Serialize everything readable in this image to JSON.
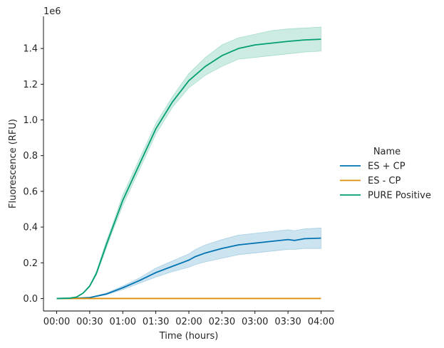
{
  "chart_data": {
    "type": "line",
    "title": "",
    "xlabel": "Time (hours)",
    "ylabel": "Fluorescence (RFU)",
    "y_scale_label": "1e6",
    "x_unit": "hours",
    "xlim": [
      -0.2,
      4.2
    ],
    "ylim": [
      -0.07,
      1.58
    ],
    "x_ticks": [
      0,
      0.5,
      1,
      1.5,
      2,
      2.5,
      3,
      3.5,
      4
    ],
    "x_tick_labels": [
      "00:00",
      "00:30",
      "01:00",
      "01:30",
      "02:00",
      "02:30",
      "03:00",
      "03:30",
      "04:00"
    ],
    "y_ticks": [
      0,
      0.2,
      0.4,
      0.6,
      0.8,
      1.0,
      1.2,
      1.4
    ],
    "y_tick_labels": [
      "0.0",
      "0.2",
      "0.4",
      "0.6",
      "0.8",
      "1.0",
      "1.2",
      "1.4"
    ],
    "grid": false,
    "legend": {
      "title": "Name",
      "placement": "right"
    },
    "series": [
      {
        "name": "ES + CP",
        "color": "#0173b2",
        "x": [
          0,
          0.25,
          0.5,
          0.75,
          1,
          1.25,
          1.5,
          1.75,
          2,
          2.1,
          2.25,
          2.5,
          2.75,
          3,
          3.25,
          3.5,
          3.6,
          3.75,
          4
        ],
        "y": [
          0,
          0.001,
          0.005,
          0.025,
          0.06,
          0.1,
          0.145,
          0.18,
          0.215,
          0.235,
          0.255,
          0.28,
          0.3,
          0.31,
          0.32,
          0.33,
          0.325,
          0.335,
          0.338
        ],
        "y_lower": [
          0,
          0.001,
          0.004,
          0.02,
          0.05,
          0.085,
          0.12,
          0.15,
          0.175,
          0.19,
          0.205,
          0.225,
          0.245,
          0.255,
          0.265,
          0.275,
          0.275,
          0.28,
          0.28
        ],
        "y_upper": [
          0,
          0.002,
          0.006,
          0.03,
          0.07,
          0.115,
          0.17,
          0.21,
          0.25,
          0.275,
          0.3,
          0.33,
          0.355,
          0.365,
          0.375,
          0.385,
          0.38,
          0.39,
          0.395
        ]
      },
      {
        "name": "ES - CP",
        "color": "#de8f05",
        "x": [
          0,
          1,
          2,
          3,
          4
        ],
        "y": [
          0,
          0,
          0,
          0,
          0
        ]
      },
      {
        "name": "PURE Positive",
        "color": "#029e73",
        "x": [
          0,
          0.2,
          0.3,
          0.4,
          0.5,
          0.6,
          0.75,
          0.85,
          1,
          1.25,
          1.5,
          1.75,
          2,
          2.25,
          2.5,
          2.75,
          3,
          3.25,
          3.5,
          3.75,
          4
        ],
        "y": [
          0,
          0.002,
          0.008,
          0.03,
          0.07,
          0.14,
          0.3,
          0.4,
          0.55,
          0.75,
          0.95,
          1.1,
          1.22,
          1.3,
          1.36,
          1.4,
          1.42,
          1.43,
          1.44,
          1.448,
          1.452
        ],
        "y_lower": [
          0,
          0.002,
          0.007,
          0.028,
          0.065,
          0.13,
          0.28,
          0.38,
          0.52,
          0.72,
          0.92,
          1.07,
          1.18,
          1.25,
          1.3,
          1.34,
          1.35,
          1.36,
          1.37,
          1.38,
          1.385
        ],
        "y_upper": [
          0,
          0.003,
          0.009,
          0.032,
          0.075,
          0.15,
          0.32,
          0.42,
          0.58,
          0.78,
          0.98,
          1.13,
          1.26,
          1.35,
          1.42,
          1.46,
          1.48,
          1.5,
          1.51,
          1.515,
          1.52
        ]
      }
    ]
  }
}
